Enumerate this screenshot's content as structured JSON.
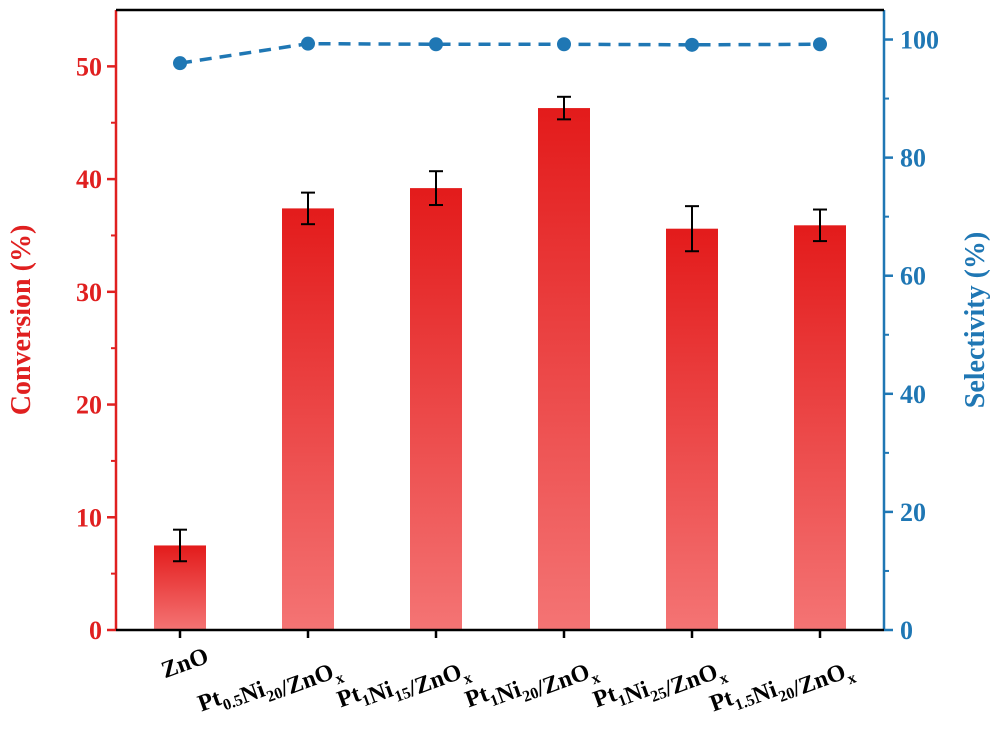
{
  "chart_data": {
    "type": "bar+line",
    "categories": [
      {
        "label": "ZnO",
        "parts": [
          {
            "t": "ZnO"
          }
        ]
      },
      {
        "label": "Pt0.5Ni20/ZnOx",
        "parts": [
          {
            "t": "Pt"
          },
          {
            "t": "0.5",
            "sub": true
          },
          {
            "t": "Ni"
          },
          {
            "t": "20",
            "sub": true
          },
          {
            "t": "/ZnO"
          },
          {
            "t": "x",
            "sub": true
          }
        ]
      },
      {
        "label": "Pt1Ni15/ZnOx",
        "parts": [
          {
            "t": "Pt"
          },
          {
            "t": "1",
            "sub": true
          },
          {
            "t": "Ni"
          },
          {
            "t": "15",
            "sub": true
          },
          {
            "t": "/ZnO"
          },
          {
            "t": "x",
            "sub": true
          }
        ]
      },
      {
        "label": "Pt1Ni20/ZnOx",
        "parts": [
          {
            "t": "Pt"
          },
          {
            "t": "1",
            "sub": true
          },
          {
            "t": "Ni"
          },
          {
            "t": "20",
            "sub": true
          },
          {
            "t": "/ZnO"
          },
          {
            "t": "x",
            "sub": true
          }
        ]
      },
      {
        "label": "Pt1Ni25/ZnOx",
        "parts": [
          {
            "t": "Pt"
          },
          {
            "t": "1",
            "sub": true
          },
          {
            "t": "Ni"
          },
          {
            "t": "25",
            "sub": true
          },
          {
            "t": "/ZnO"
          },
          {
            "t": "x",
            "sub": true
          }
        ]
      },
      {
        "label": "Pt1.5Ni20/ZnOx",
        "parts": [
          {
            "t": "Pt"
          },
          {
            "t": "1.5",
            "sub": true
          },
          {
            "t": "Ni"
          },
          {
            "t": "20",
            "sub": true
          },
          {
            "t": "/ZnO"
          },
          {
            "t": "x",
            "sub": true
          }
        ]
      }
    ],
    "conversion": {
      "axis_title": "Conversion (%)",
      "values": [
        7.5,
        37.4,
        39.2,
        46.3,
        35.6,
        35.9
      ],
      "errors": [
        1.4,
        1.4,
        1.5,
        1.0,
        2.0,
        1.4
      ],
      "ylim": [
        0,
        55
      ],
      "ticks": [
        0,
        10,
        20,
        30,
        40,
        50
      ],
      "color": "#e02020"
    },
    "selectivity": {
      "axis_title": "Selectivity (%)",
      "values": [
        96,
        99.3,
        99.2,
        99.2,
        99.1,
        99.2
      ],
      "ylim": [
        0,
        105
      ],
      "ticks": [
        0,
        20,
        40,
        60,
        80,
        100
      ],
      "color": "#1f77b4",
      "line_style": "dashed"
    },
    "colors": {
      "bar_top": "#e31b1b",
      "bar_bottom": "#f47474",
      "axes": "#000000"
    },
    "grid": false
  }
}
